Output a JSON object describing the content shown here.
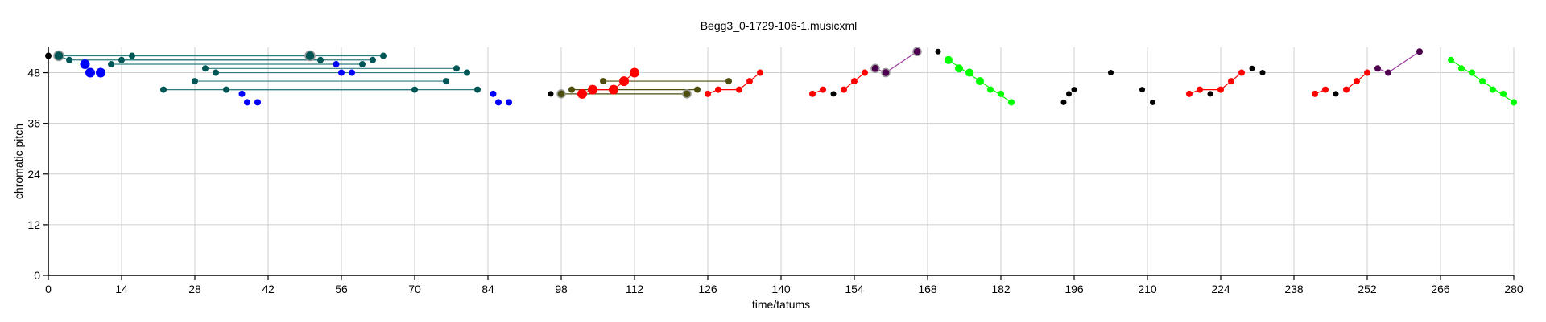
{
  "chart_data": {
    "type": "scatter",
    "title": "Begg3_0-1729-106-1.musicxml",
    "xlabel": "time/tatums",
    "ylabel": "chromatic pitch",
    "xlim": [
      0,
      280
    ],
    "ylim": [
      0,
      54
    ],
    "xticks": [
      0,
      14,
      28,
      42,
      56,
      70,
      84,
      98,
      112,
      126,
      140,
      154,
      168,
      182,
      196,
      210,
      224,
      238,
      252,
      266,
      280
    ],
    "yticks": [
      0,
      12,
      24,
      36,
      48
    ],
    "grid": true,
    "colors": {
      "black": "#000000",
      "blue": "#0000ff",
      "teal": "#005555",
      "teal_line": "#2e7c82",
      "red": "#ff0000",
      "olive": "#4d4d0d",
      "purple": "#4d004d",
      "purple_line": "#9b3d9b",
      "green": "#00ff00"
    },
    "points": [
      {
        "x": 0,
        "y": 52,
        "c": "black",
        "s": 4
      },
      {
        "x": 2,
        "y": 52,
        "c": "teal",
        "s": 6
      },
      {
        "x": 4,
        "y": 51,
        "c": "teal",
        "s": 4
      },
      {
        "x": 7,
        "y": 50,
        "c": "blue",
        "s": 6
      },
      {
        "x": 8,
        "y": 48,
        "c": "blue",
        "s": 6
      },
      {
        "x": 10,
        "y": 48,
        "c": "blue",
        "s": 6
      },
      {
        "x": 12,
        "y": 50,
        "c": "teal",
        "s": 4
      },
      {
        "x": 14,
        "y": 51,
        "c": "teal",
        "s": 4
      },
      {
        "x": 16,
        "y": 52,
        "c": "teal",
        "s": 4
      },
      {
        "x": 22,
        "y": 44,
        "c": "teal",
        "s": 4
      },
      {
        "x": 28,
        "y": 46,
        "c": "teal",
        "s": 4
      },
      {
        "x": 30,
        "y": 49,
        "c": "teal",
        "s": 4
      },
      {
        "x": 32,
        "y": 48,
        "c": "teal",
        "s": 4
      },
      {
        "x": 34,
        "y": 44,
        "c": "teal",
        "s": 4
      },
      {
        "x": 37,
        "y": 43,
        "c": "blue",
        "s": 4
      },
      {
        "x": 38,
        "y": 41,
        "c": "blue",
        "s": 4
      },
      {
        "x": 40,
        "y": 41,
        "c": "blue",
        "s": 4
      },
      {
        "x": 50,
        "y": 52,
        "c": "teal",
        "s": 6
      },
      {
        "x": 52,
        "y": 51,
        "c": "teal",
        "s": 4
      },
      {
        "x": 55,
        "y": 50,
        "c": "blue",
        "s": 4
      },
      {
        "x": 56,
        "y": 48,
        "c": "blue",
        "s": 4
      },
      {
        "x": 58,
        "y": 48,
        "c": "blue",
        "s": 4
      },
      {
        "x": 60,
        "y": 50,
        "c": "teal",
        "s": 4
      },
      {
        "x": 62,
        "y": 51,
        "c": "teal",
        "s": 4
      },
      {
        "x": 64,
        "y": 52,
        "c": "teal",
        "s": 4
      },
      {
        "x": 70,
        "y": 44,
        "c": "teal",
        "s": 4
      },
      {
        "x": 76,
        "y": 46,
        "c": "teal",
        "s": 4
      },
      {
        "x": 78,
        "y": 49,
        "c": "teal",
        "s": 4
      },
      {
        "x": 80,
        "y": 48,
        "c": "teal",
        "s": 4
      },
      {
        "x": 82,
        "y": 44,
        "c": "teal",
        "s": 4
      },
      {
        "x": 85,
        "y": 43,
        "c": "blue",
        "s": 4
      },
      {
        "x": 86,
        "y": 41,
        "c": "blue",
        "s": 4
      },
      {
        "x": 88,
        "y": 41,
        "c": "blue",
        "s": 4
      },
      {
        "x": 96,
        "y": 43,
        "c": "black",
        "s": 3.5
      },
      {
        "x": 98,
        "y": 43,
        "c": "olive",
        "s": 5
      },
      {
        "x": 100,
        "y": 44,
        "c": "olive",
        "s": 4
      },
      {
        "x": 102,
        "y": 43,
        "c": "red",
        "s": 6
      },
      {
        "x": 104,
        "y": 44,
        "c": "red",
        "s": 6
      },
      {
        "x": 106,
        "y": 46,
        "c": "olive",
        "s": 4
      },
      {
        "x": 108,
        "y": 44,
        "c": "red",
        "s": 6
      },
      {
        "x": 110,
        "y": 46,
        "c": "red",
        "s": 6
      },
      {
        "x": 112,
        "y": 48,
        "c": "red",
        "s": 6
      },
      {
        "x": 122,
        "y": 43,
        "c": "olive",
        "s": 5
      },
      {
        "x": 124,
        "y": 44,
        "c": "olive",
        "s": 4
      },
      {
        "x": 126,
        "y": 43,
        "c": "red",
        "s": 4
      },
      {
        "x": 128,
        "y": 44,
        "c": "red",
        "s": 4
      },
      {
        "x": 130,
        "y": 46,
        "c": "olive",
        "s": 4
      },
      {
        "x": 132,
        "y": 44,
        "c": "red",
        "s": 4
      },
      {
        "x": 134,
        "y": 46,
        "c": "red",
        "s": 4
      },
      {
        "x": 136,
        "y": 48,
        "c": "red",
        "s": 4
      },
      {
        "x": 146,
        "y": 43,
        "c": "red",
        "s": 4
      },
      {
        "x": 148,
        "y": 44,
        "c": "red",
        "s": 4
      },
      {
        "x": 150,
        "y": 43,
        "c": "black",
        "s": 3.5
      },
      {
        "x": 152,
        "y": 44,
        "c": "red",
        "s": 4
      },
      {
        "x": 154,
        "y": 46,
        "c": "red",
        "s": 4
      },
      {
        "x": 156,
        "y": 48,
        "c": "red",
        "s": 4
      },
      {
        "x": 158,
        "y": 49,
        "c": "purple",
        "s": 5
      },
      {
        "x": 160,
        "y": 48,
        "c": "purple",
        "s": 5
      },
      {
        "x": 166,
        "y": 53,
        "c": "purple",
        "s": 5
      },
      {
        "x": 170,
        "y": 53,
        "c": "black",
        "s": 3.5
      },
      {
        "x": 172,
        "y": 51,
        "c": "green",
        "s": 5
      },
      {
        "x": 174,
        "y": 49,
        "c": "green",
        "s": 5
      },
      {
        "x": 176,
        "y": 48,
        "c": "green",
        "s": 5
      },
      {
        "x": 178,
        "y": 46,
        "c": "green",
        "s": 5
      },
      {
        "x": 180,
        "y": 44,
        "c": "green",
        "s": 4
      },
      {
        "x": 182,
        "y": 43,
        "c": "green",
        "s": 4
      },
      {
        "x": 184,
        "y": 41,
        "c": "green",
        "s": 4
      },
      {
        "x": 194,
        "y": 41,
        "c": "black",
        "s": 3.5
      },
      {
        "x": 195,
        "y": 43,
        "c": "black",
        "s": 3.5
      },
      {
        "x": 196,
        "y": 44,
        "c": "black",
        "s": 3.5
      },
      {
        "x": 203,
        "y": 48,
        "c": "black",
        "s": 3.5
      },
      {
        "x": 209,
        "y": 44,
        "c": "black",
        "s": 3.5
      },
      {
        "x": 211,
        "y": 41,
        "c": "black",
        "s": 3.5
      },
      {
        "x": 218,
        "y": 43,
        "c": "red",
        "s": 4
      },
      {
        "x": 220,
        "y": 44,
        "c": "red",
        "s": 4
      },
      {
        "x": 222,
        "y": 43,
        "c": "black",
        "s": 3.5
      },
      {
        "x": 224,
        "y": 44,
        "c": "red",
        "s": 4
      },
      {
        "x": 226,
        "y": 46,
        "c": "red",
        "s": 4
      },
      {
        "x": 228,
        "y": 48,
        "c": "red",
        "s": 4
      },
      {
        "x": 230,
        "y": 49,
        "c": "black",
        "s": 3.5
      },
      {
        "x": 232,
        "y": 48,
        "c": "black",
        "s": 3.5
      },
      {
        "x": 242,
        "y": 43,
        "c": "red",
        "s": 4
      },
      {
        "x": 244,
        "y": 44,
        "c": "red",
        "s": 4
      },
      {
        "x": 246,
        "y": 43,
        "c": "black",
        "s": 3.5
      },
      {
        "x": 248,
        "y": 44,
        "c": "red",
        "s": 4
      },
      {
        "x": 250,
        "y": 46,
        "c": "red",
        "s": 4
      },
      {
        "x": 252,
        "y": 48,
        "c": "red",
        "s": 4
      },
      {
        "x": 254,
        "y": 49,
        "c": "purple",
        "s": 4
      },
      {
        "x": 256,
        "y": 48,
        "c": "purple",
        "s": 4
      },
      {
        "x": 262,
        "y": 53,
        "c": "purple",
        "s": 4
      },
      {
        "x": 268,
        "y": 51,
        "c": "green",
        "s": 4
      },
      {
        "x": 270,
        "y": 49,
        "c": "green",
        "s": 4
      },
      {
        "x": 272,
        "y": 48,
        "c": "green",
        "s": 4
      },
      {
        "x": 274,
        "y": 46,
        "c": "green",
        "s": 4
      },
      {
        "x": 276,
        "y": 44,
        "c": "green",
        "s": 4
      },
      {
        "x": 278,
        "y": 43,
        "c": "green",
        "s": 4
      },
      {
        "x": 280,
        "y": 41,
        "c": "green",
        "s": 4
      }
    ],
    "links": [
      {
        "x1": 2,
        "y1": 52,
        "x2": 50,
        "y2": 52,
        "c": "teal_line"
      },
      {
        "x1": 2,
        "y1": 52,
        "x2": 4,
        "y2": 51,
        "c": "teal_line"
      },
      {
        "x1": 4,
        "y1": 51,
        "x2": 52,
        "y2": 51,
        "c": "teal_line"
      },
      {
        "x1": 12,
        "y1": 50,
        "x2": 60,
        "y2": 50,
        "c": "teal_line"
      },
      {
        "x1": 14,
        "y1": 51,
        "x2": 62,
        "y2": 51,
        "c": "teal_line"
      },
      {
        "x1": 16,
        "y1": 52,
        "x2": 64,
        "y2": 52,
        "c": "teal_line"
      },
      {
        "x1": 22,
        "y1": 44,
        "x2": 70,
        "y2": 44,
        "c": "teal_line"
      },
      {
        "x1": 28,
        "y1": 46,
        "x2": 76,
        "y2": 46,
        "c": "teal_line"
      },
      {
        "x1": 30,
        "y1": 49,
        "x2": 78,
        "y2": 49,
        "c": "teal_line"
      },
      {
        "x1": 32,
        "y1": 48,
        "x2": 80,
        "y2": 48,
        "c": "teal_line"
      },
      {
        "x1": 34,
        "y1": 44,
        "x2": 82,
        "y2": 44,
        "c": "teal_line"
      },
      {
        "x1": 98,
        "y1": 43,
        "x2": 122,
        "y2": 43,
        "c": "olive"
      },
      {
        "x1": 100,
        "y1": 44,
        "x2": 124,
        "y2": 44,
        "c": "olive"
      },
      {
        "x1": 106,
        "y1": 46,
        "x2": 130,
        "y2": 46,
        "c": "olive"
      },
      {
        "x1": 102,
        "y1": 43,
        "x2": 104,
        "y2": 44,
        "c": "red"
      },
      {
        "x1": 104,
        "y1": 44,
        "x2": 108,
        "y2": 44,
        "c": "red"
      },
      {
        "x1": 108,
        "y1": 44,
        "x2": 110,
        "y2": 46,
        "c": "red"
      },
      {
        "x1": 110,
        "y1": 46,
        "x2": 112,
        "y2": 48,
        "c": "red"
      },
      {
        "x1": 126,
        "y1": 43,
        "x2": 128,
        "y2": 44,
        "c": "red"
      },
      {
        "x1": 128,
        "y1": 44,
        "x2": 132,
        "y2": 44,
        "c": "red"
      },
      {
        "x1": 132,
        "y1": 44,
        "x2": 134,
        "y2": 46,
        "c": "red"
      },
      {
        "x1": 134,
        "y1": 46,
        "x2": 136,
        "y2": 48,
        "c": "red"
      },
      {
        "x1": 146,
        "y1": 43,
        "x2": 148,
        "y2": 44,
        "c": "red"
      },
      {
        "x1": 152,
        "y1": 44,
        "x2": 154,
        "y2": 46,
        "c": "red"
      },
      {
        "x1": 154,
        "y1": 46,
        "x2": 156,
        "y2": 48,
        "c": "red"
      },
      {
        "x1": 158,
        "y1": 49,
        "x2": 160,
        "y2": 48,
        "c": "purple_line"
      },
      {
        "x1": 160,
        "y1": 48,
        "x2": 166,
        "y2": 53,
        "c": "purple_line"
      },
      {
        "x1": 172,
        "y1": 51,
        "x2": 184,
        "y2": 41,
        "c": "green"
      },
      {
        "x1": 218,
        "y1": 43,
        "x2": 220,
        "y2": 44,
        "c": "red"
      },
      {
        "x1": 220,
        "y1": 44,
        "x2": 224,
        "y2": 44,
        "c": "red"
      },
      {
        "x1": 224,
        "y1": 44,
        "x2": 228,
        "y2": 48,
        "c": "red"
      },
      {
        "x1": 242,
        "y1": 43,
        "x2": 244,
        "y2": 44,
        "c": "red"
      },
      {
        "x1": 248,
        "y1": 44,
        "x2": 252,
        "y2": 48,
        "c": "red"
      },
      {
        "x1": 254,
        "y1": 49,
        "x2": 256,
        "y2": 48,
        "c": "purple_line"
      },
      {
        "x1": 256,
        "y1": 48,
        "x2": 262,
        "y2": 53,
        "c": "purple_line"
      },
      {
        "x1": 268,
        "y1": 51,
        "x2": 280,
        "y2": 41,
        "c": "green"
      }
    ]
  }
}
